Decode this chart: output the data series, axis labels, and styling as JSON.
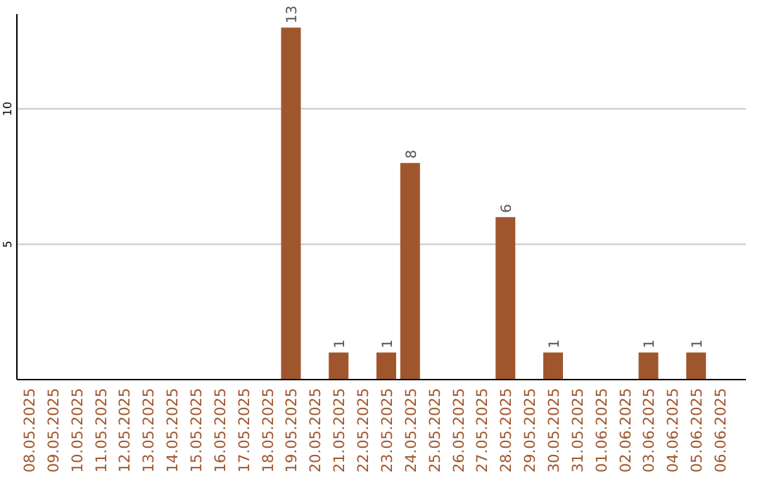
{
  "chart_data": {
    "type": "bar",
    "categories": [
      "08.05.2025",
      "09.05.2025",
      "10.05.2025",
      "11.05.2025",
      "12.05.2025",
      "13.05.2025",
      "14.05.2025",
      "15.05.2025",
      "16.05.2025",
      "17.05.2025",
      "18.05.2025",
      "19.05.2025",
      "20.05.2025",
      "21.05.2025",
      "22.05.2025",
      "23.05.2025",
      "24.05.2025",
      "25.05.2025",
      "26.05.2025",
      "27.05.2025",
      "28.05.2025",
      "29.05.2025",
      "30.05.2025",
      "31.05.2025",
      "01.06.2025",
      "02.06.2025",
      "03.06.2025",
      "04.06.2025",
      "05.06.2025",
      "06.06.2025"
    ],
    "values": [
      0,
      0,
      0,
      0,
      0,
      0,
      0,
      0,
      0,
      0,
      0,
      13,
      0,
      1,
      0,
      1,
      8,
      0,
      0,
      0,
      6,
      0,
      1,
      0,
      0,
      0,
      1,
      0,
      1,
      0
    ],
    "value_labels": [
      null,
      null,
      null,
      null,
      null,
      null,
      null,
      null,
      null,
      null,
      null,
      "13",
      null,
      "1",
      null,
      "1",
      "8",
      null,
      null,
      null,
      "6",
      null,
      "1",
      null,
      null,
      null,
      "1",
      null,
      "1",
      null
    ],
    "color": "#a0562c",
    "ylim": [
      0,
      13.5
    ],
    "yticks": [
      5,
      10
    ],
    "grid": "y"
  }
}
